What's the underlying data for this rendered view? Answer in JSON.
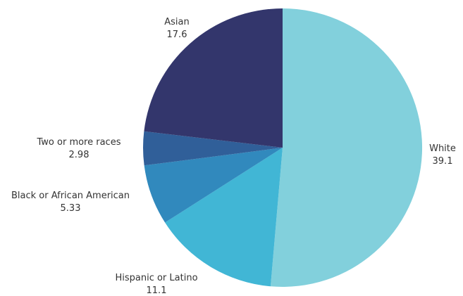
{
  "chart_data": {
    "type": "pie",
    "title": "",
    "start": "top",
    "direction": "clockwise",
    "slices": [
      {
        "label": "White",
        "value": 39.1,
        "color": "#82d0dc"
      },
      {
        "label": "Hispanic or Latino",
        "value": 11.1,
        "color": "#41b6d5"
      },
      {
        "label": "Black or African American",
        "value": 5.33,
        "color": "#3189bd"
      },
      {
        "label": "Two or more races",
        "value": 2.98,
        "color": "#305f99"
      },
      {
        "label": "Asian",
        "value": 17.6,
        "color": "#33366c"
      }
    ]
  }
}
